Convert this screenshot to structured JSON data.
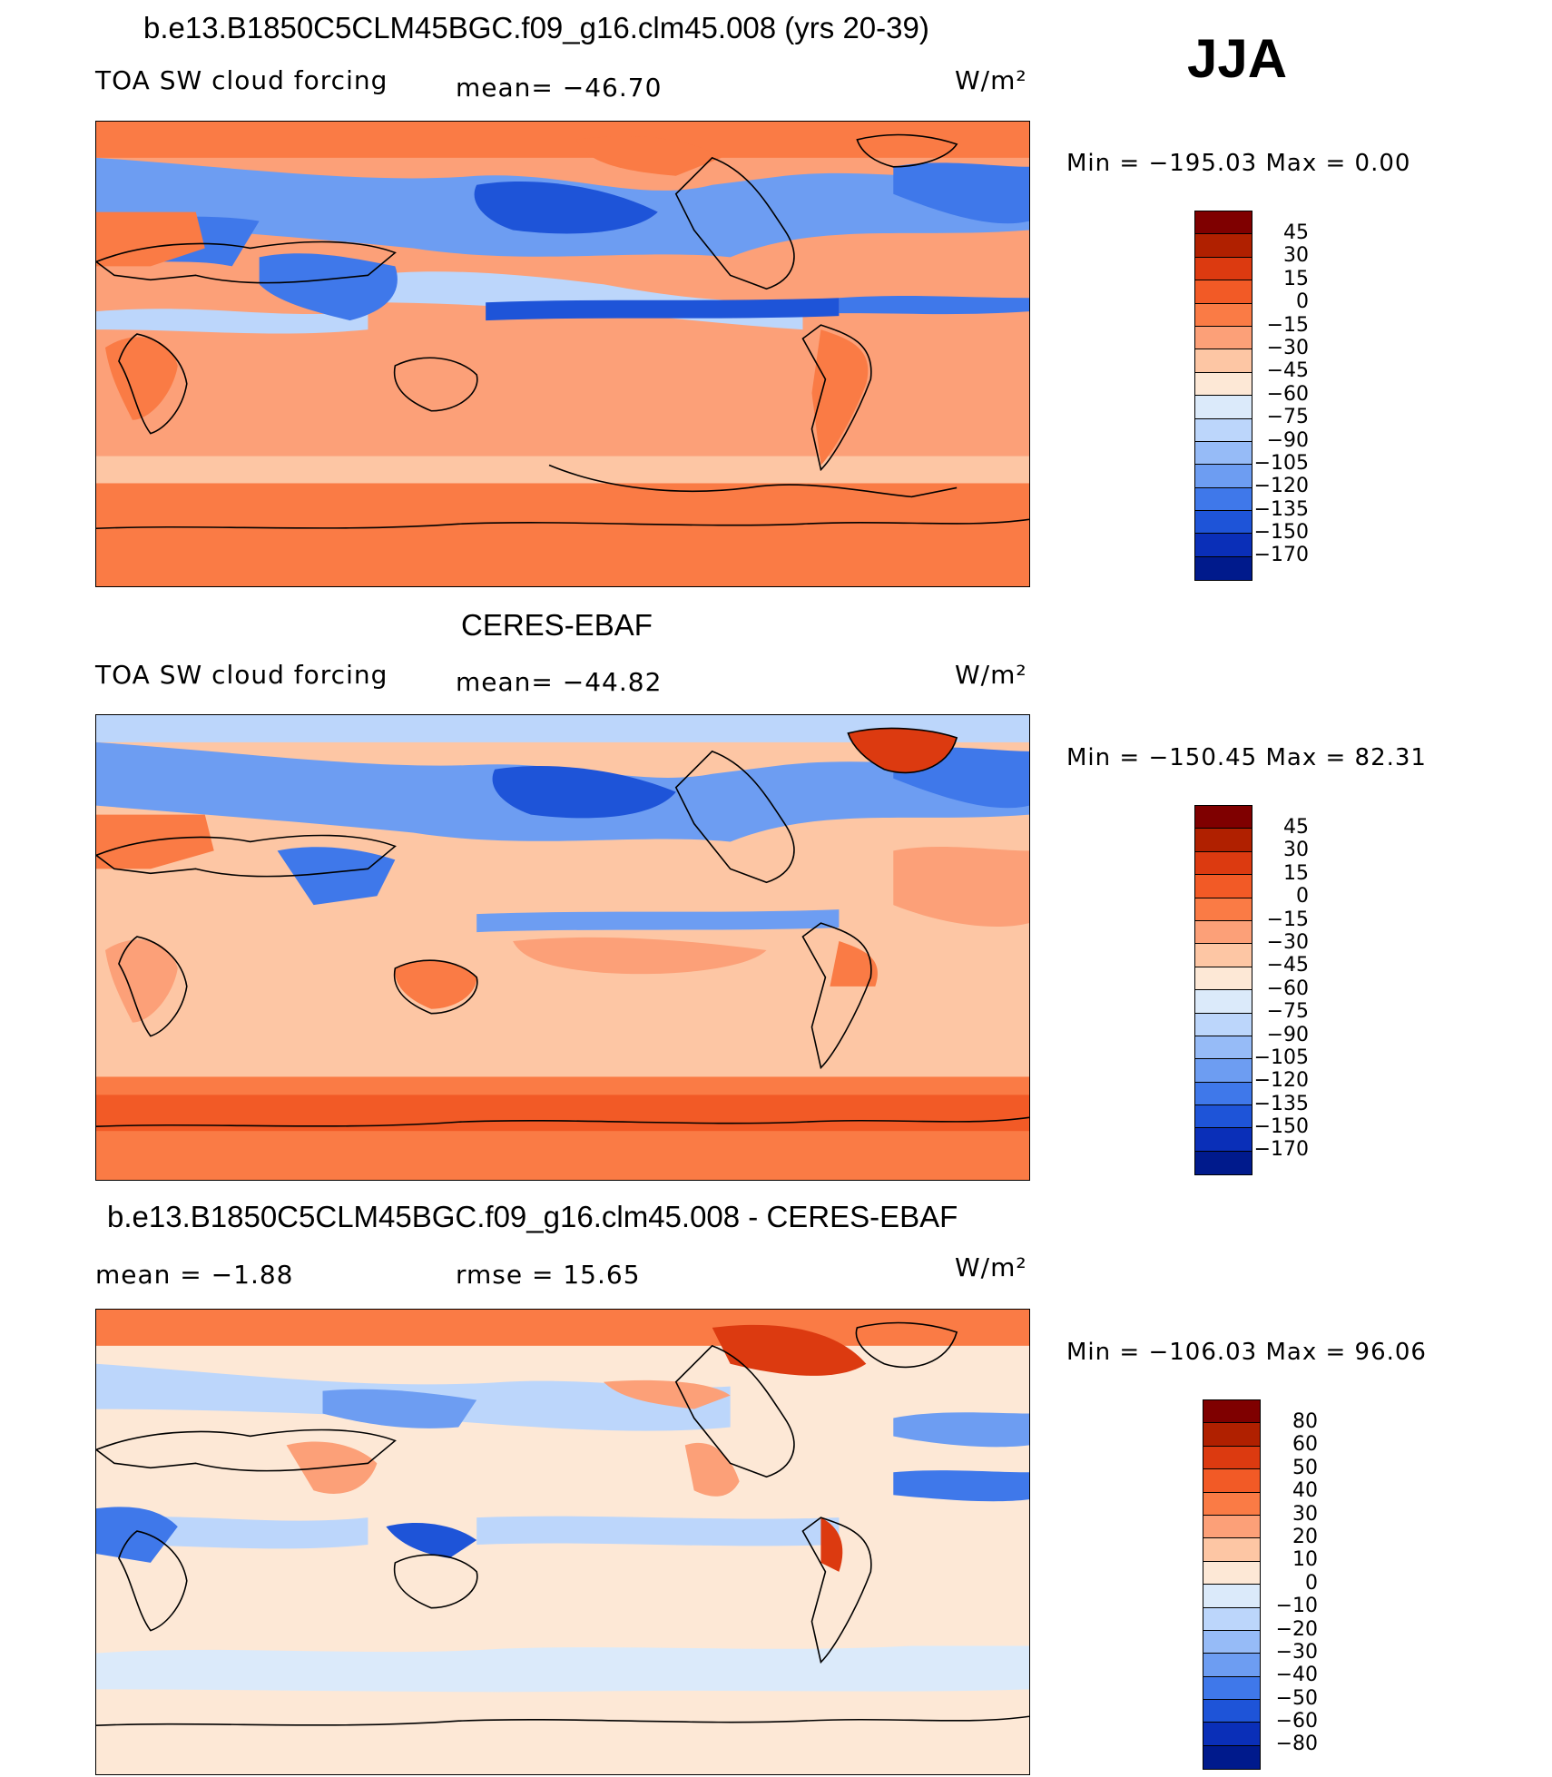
{
  "season": "JJA",
  "units_label": "W/m²",
  "panels": [
    {
      "title": "b.e13.B1850C5CLM45BGC.f09_g16.clm45.008 (yrs 20-39)",
      "left_label": "TOA SW cloud forcing",
      "mid_label": "mean= −46.70",
      "minmax": "Min  =  −195.03  Max  =      0.00"
    },
    {
      "title": "CERES-EBAF",
      "left_label": "TOA SW cloud forcing",
      "mid_label": "mean= −44.82",
      "minmax": "Min  =  −150.45  Max  =    82.31"
    },
    {
      "title": "b.e13.B1850C5CLM45BGC.f09_g16.clm45.008 - CERES-EBAF",
      "left_label": "mean  =    −1.88",
      "mid_label": "rmse  =    15.65",
      "minmax": "Min  =  −106.03  Max  =    96.06"
    }
  ],
  "chart_data": [
    {
      "type": "heatmap",
      "title": "b.e13.B1850C5CLM45BGC.f09_g16.clm45.008 (yrs 20-39)",
      "variable": "TOA SW cloud forcing",
      "units": "W/m²",
      "mean": -46.7,
      "min": -195.03,
      "max": 0.0,
      "colorbar_levels": [
        "45",
        "30",
        "15",
        "0",
        "−15",
        "−30",
        "−45",
        "−60",
        "−75",
        "−90",
        "−105",
        "−120",
        "−135",
        "−150",
        "−170"
      ]
    },
    {
      "type": "heatmap",
      "title": "CERES-EBAF",
      "variable": "TOA SW cloud forcing",
      "units": "W/m²",
      "mean": -44.82,
      "min": -150.45,
      "max": 82.31,
      "colorbar_levels": [
        "45",
        "30",
        "15",
        "0",
        "−15",
        "−30",
        "−45",
        "−60",
        "−75",
        "−90",
        "−105",
        "−120",
        "−135",
        "−150",
        "−170"
      ]
    },
    {
      "type": "heatmap",
      "title": "b.e13.B1850C5CLM45BGC.f09_g16.clm45.008 - CERES-EBAF",
      "units": "W/m²",
      "mean": -1.88,
      "rmse": 15.65,
      "min": -106.03,
      "max": 96.06,
      "colorbar_levels": [
        "80",
        "60",
        "50",
        "40",
        "30",
        "20",
        "10",
        "0",
        "−10",
        "−20",
        "−30",
        "−40",
        "−50",
        "−60",
        "−80"
      ]
    }
  ],
  "colorbar_colors": [
    "#7f0000",
    "#b02000",
    "#dc3a10",
    "#f25a26",
    "#fa7b45",
    "#fca078",
    "#fdc6a4",
    "#fde8d6",
    "#dbeafa",
    "#bcd6fb",
    "#96bbf7",
    "#6d9df2",
    "#3f78ea",
    "#1e54d8",
    "#0a2fb8",
    "#001a8c"
  ],
  "panel_palette": {
    "ocean_base": "#fca078",
    "south_band": "#fa7b45",
    "storm_track": "#3f78ea",
    "itcz": "#1e54d8",
    "stratocumulus": "#6d9df2",
    "land_warm": "#fa7b45",
    "diff_base": "#fde8d6",
    "diff_neg": "#bcd6fb",
    "diff_pos": "#fca078"
  }
}
